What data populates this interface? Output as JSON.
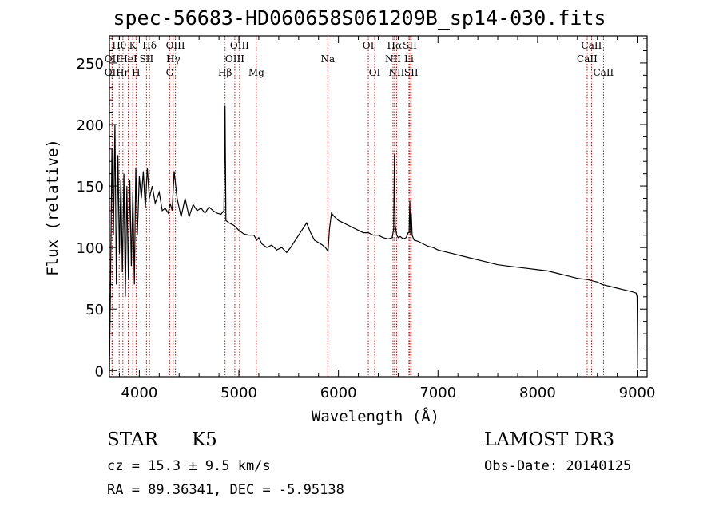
{
  "header": {
    "title": "spec-56683-HD060658S061209B_sp14-030.fits"
  },
  "info": {
    "class_label": "STAR",
    "subclass": "K5",
    "survey": "LAMOST DR3",
    "redshift": "cz = 15.3 ± 9.5 km/s",
    "obs_date": "Obs-Date: 20140125",
    "coords": "RA =  89.36341, DEC =  -5.95138"
  },
  "chart_data": {
    "type": "line",
    "title": "spec-56683-HD060658S061209B_sp14-030.fits",
    "xlabel": "Wavelength (Å)",
    "ylabel": "Flux (relative)",
    "xlim": [
      3700,
      9100
    ],
    "ylim": [
      -5,
      272
    ],
    "xticks": [
      4000,
      5000,
      6000,
      7000,
      8000,
      9000
    ],
    "yticks": [
      0,
      50,
      100,
      150,
      200,
      250
    ],
    "line_color": "#cc0000",
    "series": [
      {
        "name": "flux",
        "x": [
          3700,
          3710,
          3725,
          3740,
          3755,
          3770,
          3785,
          3800,
          3815,
          3830,
          3845,
          3860,
          3875,
          3890,
          3905,
          3920,
          3935,
          3950,
          3965,
          3980,
          4000,
          4020,
          4040,
          4060,
          4080,
          4100,
          4130,
          4160,
          4200,
          4230,
          4260,
          4290,
          4310,
          4330,
          4350,
          4380,
          4420,
          4460,
          4500,
          4540,
          4580,
          4620,
          4660,
          4700,
          4740,
          4780,
          4820,
          4850,
          4861,
          4870,
          4900,
          4950,
          5000,
          5050,
          5100,
          5150,
          5180,
          5200,
          5230,
          5280,
          5330,
          5380,
          5430,
          5480,
          5520,
          5560,
          5600,
          5640,
          5680,
          5720,
          5760,
          5800,
          5840,
          5870,
          5895,
          5910,
          5930,
          5960,
          6000,
          6050,
          6100,
          6150,
          6200,
          6250,
          6300,
          6350,
          6400,
          6450,
          6500,
          6540,
          6555,
          6563,
          6570,
          6585,
          6600,
          6620,
          6650,
          6680,
          6700,
          6710,
          6717,
          6725,
          6731,
          6740,
          6760,
          6800,
          6850,
          6900,
          6950,
          7000,
          7050,
          7100,
          7150,
          7200,
          7300,
          7400,
          7500,
          7600,
          7700,
          7800,
          7900,
          8000,
          8100,
          8200,
          8300,
          8400,
          8500,
          8550,
          8600,
          8650,
          8700,
          8750,
          8800,
          8850,
          8900,
          8950,
          8990,
          9000,
          9005
        ],
        "values": [
          0,
          60,
          180,
          110,
          200,
          70,
          175,
          95,
          155,
          80,
          160,
          60,
          150,
          75,
          155,
          85,
          145,
          70,
          165,
          110,
          158,
          140,
          162,
          132,
          165,
          140,
          150,
          136,
          145,
          130,
          132,
          128,
          136,
          130,
          162,
          140,
          125,
          140,
          125,
          135,
          130,
          132,
          128,
          133,
          130,
          128,
          127,
          130,
          215,
          122,
          120,
          118,
          114,
          111,
          110,
          110,
          106,
          108,
          103,
          100,
          102,
          98,
          100,
          96,
          100,
          105,
          110,
          115,
          120,
          112,
          106,
          104,
          102,
          100,
          97,
          115,
          128,
          125,
          122,
          120,
          118,
          116,
          114,
          112,
          112,
          110,
          110,
          108,
          107,
          108,
          115,
          176,
          118,
          110,
          108,
          109,
          107,
          108,
          112,
          112,
          138,
          110,
          128,
          110,
          106,
          105,
          103,
          101,
          100,
          98,
          97,
          96,
          95,
          94,
          92,
          90,
          88,
          86,
          85,
          84,
          83,
          82,
          81,
          79,
          77,
          75,
          74,
          73,
          72,
          70,
          69,
          68,
          67,
          66,
          65,
          64,
          63,
          60,
          2
        ],
        "units": "relative flux"
      }
    ],
    "spectral_lines": [
      {
        "name": "OII",
        "wave": 3727,
        "row": 1
      },
      {
        "name": "Hθ",
        "wave": 3798,
        "row": 0
      },
      {
        "name": "OII",
        "wave": 3727,
        "row": 2
      },
      {
        "name": "Hη",
        "wave": 3835,
        "row": 2
      },
      {
        "name": "HeI",
        "wave": 3889,
        "row": 1
      },
      {
        "name": "K",
        "wave": 3934,
        "row": 0
      },
      {
        "name": "SII",
        "wave": 4072,
        "row": 1
      },
      {
        "name": "H",
        "wave": 3968,
        "row": 2
      },
      {
        "name": "Hδ",
        "wave": 4102,
        "row": 0
      },
      {
        "name": "Hγ",
        "wave": 4340,
        "row": 1
      },
      {
        "name": "G",
        "wave": 4305,
        "row": 2
      },
      {
        "name": "OIII",
        "wave": 4363,
        "row": 0
      },
      {
        "name": "Hβ",
        "wave": 4861,
        "row": 2
      },
      {
        "name": "OIII",
        "wave": 4959,
        "row": 1
      },
      {
        "name": "OIII",
        "wave": 5007,
        "row": 0
      },
      {
        "name": "Mg",
        "wave": 5175,
        "row": 2
      },
      {
        "name": "Na",
        "wave": 5893,
        "row": 1
      },
      {
        "name": "OI",
        "wave": 6300,
        "row": 0
      },
      {
        "name": "OI",
        "wave": 6364,
        "row": 2
      },
      {
        "name": "Hα",
        "wave": 6563,
        "row": 0
      },
      {
        "name": "NII",
        "wave": 6548,
        "row": 1
      },
      {
        "name": "NII",
        "wave": 6584,
        "row": 2
      },
      {
        "name": "SII",
        "wave": 6717,
        "row": 0
      },
      {
        "name": "Li",
        "wave": 6708,
        "row": 1
      },
      {
        "name": "SII",
        "wave": 6731,
        "row": 2
      },
      {
        "name": "CaII",
        "wave": 8542,
        "row": 0
      },
      {
        "name": "CaII",
        "wave": 8498,
        "row": 1
      },
      {
        "name": "CaII",
        "wave": 8662,
        "row": 2
      }
    ]
  }
}
